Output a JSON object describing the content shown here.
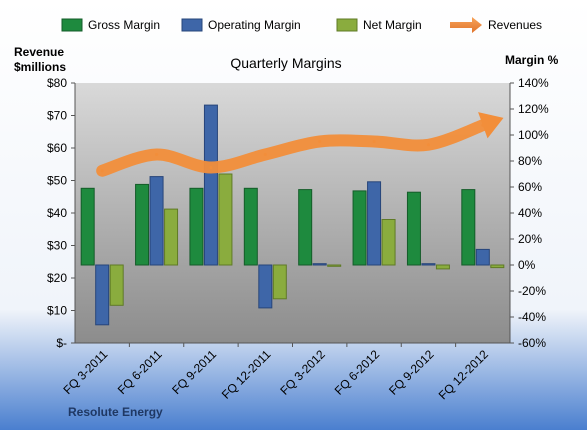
{
  "chart_data": {
    "type": "bar",
    "title": "Quarterly Margins",
    "footer": "Resolute Energy",
    "ylabel_left_line1": "Revenue",
    "ylabel_left_line2": "$millions",
    "ylabel_right": "Margin %",
    "categories": [
      "FQ 3-2011",
      "FQ 6-2011",
      "FQ 9-2011",
      "FQ 12-2011",
      "FQ 3-2012",
      "FQ 6-2012",
      "FQ 9-2012",
      "FQ 12-2012"
    ],
    "left_axis": {
      "min": 0,
      "max": 80,
      "step": 10,
      "ticks": [
        "$-",
        "$10",
        "$20",
        "$30",
        "$40",
        "$50",
        "$60",
        "$70",
        "$80"
      ]
    },
    "right_axis": {
      "min": -60,
      "max": 140,
      "step": 20,
      "ticks": [
        "-60%",
        "-40%",
        "-20%",
        "0%",
        "20%",
        "40%",
        "60%",
        "80%",
        "100%",
        "120%",
        "140%"
      ]
    },
    "series": [
      {
        "name": "Gross Margin",
        "axis": "right",
        "kind": "bar",
        "color": "#1e8a3e",
        "values": [
          59,
          62,
          59,
          59,
          58,
          57,
          56,
          58
        ]
      },
      {
        "name": "Operating Margin",
        "axis": "right",
        "kind": "bar",
        "color": "#3e66a8",
        "values": [
          -46,
          68,
          123,
          -33,
          1,
          64,
          1,
          12
        ]
      },
      {
        "name": "Net Margin",
        "axis": "right",
        "kind": "bar",
        "color": "#8aac3e",
        "values": [
          -31,
          43,
          70,
          -26,
          -1,
          35,
          -3,
          -2
        ]
      },
      {
        "name": "Revenues",
        "axis": "left",
        "kind": "line",
        "color": "#f28e3a",
        "values": [
          53,
          58,
          54,
          58,
          62,
          62,
          61,
          67
        ]
      }
    ],
    "legend_position": "top",
    "grid": false
  }
}
